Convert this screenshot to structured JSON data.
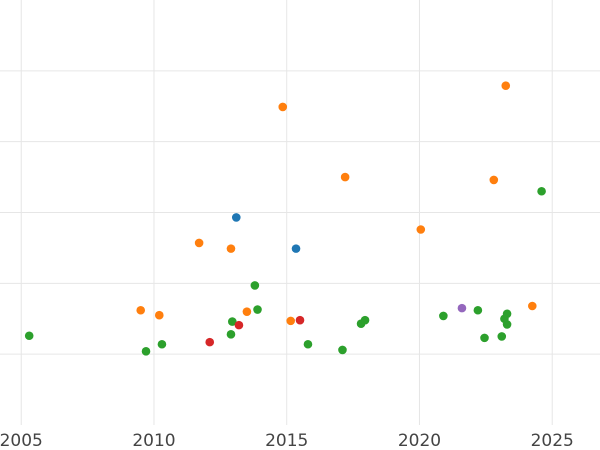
{
  "chart_data": {
    "type": "scatter",
    "title": "",
    "xlabel": "",
    "ylabel": "",
    "xlim": [
      2004.2,
      2026.8
    ],
    "ylim": [
      0,
      6
    ],
    "x_ticks": [
      2005,
      2010,
      2015,
      2020,
      2025
    ],
    "x_tick_labels": [
      "2005",
      "2010",
      "2015",
      "2020",
      "2025"
    ],
    "y_gridlines": [
      1,
      2,
      3,
      4,
      5
    ],
    "grid": true,
    "legend": "none",
    "series": [
      {
        "color": "#1f77b4",
        "points": [
          {
            "x": 2013.1,
            "y": 2.93
          },
          {
            "x": 2015.35,
            "y": 2.49
          }
        ]
      },
      {
        "color": "#ff7f0e",
        "points": [
          {
            "x": 2009.5,
            "y": 1.62
          },
          {
            "x": 2010.2,
            "y": 1.55
          },
          {
            "x": 2011.7,
            "y": 2.57
          },
          {
            "x": 2012.9,
            "y": 2.49
          },
          {
            "x": 2013.5,
            "y": 1.6
          },
          {
            "x": 2014.85,
            "y": 4.49
          },
          {
            "x": 2015.15,
            "y": 1.47
          },
          {
            "x": 2017.2,
            "y": 3.5
          },
          {
            "x": 2020.05,
            "y": 2.76
          },
          {
            "x": 2022.8,
            "y": 3.46
          },
          {
            "x": 2023.25,
            "y": 4.79
          },
          {
            "x": 2024.25,
            "y": 1.68
          }
        ]
      },
      {
        "color": "#2ca02c",
        "points": [
          {
            "x": 2005.3,
            "y": 1.26
          },
          {
            "x": 2009.7,
            "y": 1.04
          },
          {
            "x": 2010.3,
            "y": 1.14
          },
          {
            "x": 2012.95,
            "y": 1.46
          },
          {
            "x": 2012.9,
            "y": 1.28
          },
          {
            "x": 2013.8,
            "y": 1.97
          },
          {
            "x": 2013.9,
            "y": 1.63
          },
          {
            "x": 2015.8,
            "y": 1.14
          },
          {
            "x": 2017.1,
            "y": 1.06
          },
          {
            "x": 2017.8,
            "y": 1.43
          },
          {
            "x": 2017.95,
            "y": 1.48
          },
          {
            "x": 2020.9,
            "y": 1.54
          },
          {
            "x": 2022.2,
            "y": 1.62
          },
          {
            "x": 2022.45,
            "y": 1.23
          },
          {
            "x": 2023.1,
            "y": 1.25
          },
          {
            "x": 2023.2,
            "y": 1.5
          },
          {
            "x": 2023.3,
            "y": 1.57
          },
          {
            "x": 2023.3,
            "y": 1.42
          },
          {
            "x": 2024.6,
            "y": 3.3
          }
        ]
      },
      {
        "color": "#d62728",
        "points": [
          {
            "x": 2012.1,
            "y": 1.17
          },
          {
            "x": 2013.2,
            "y": 1.41
          },
          {
            "x": 2015.5,
            "y": 1.48
          }
        ]
      },
      {
        "color": "#9467bd",
        "points": [
          {
            "x": 2021.6,
            "y": 1.65
          }
        ]
      }
    ]
  }
}
